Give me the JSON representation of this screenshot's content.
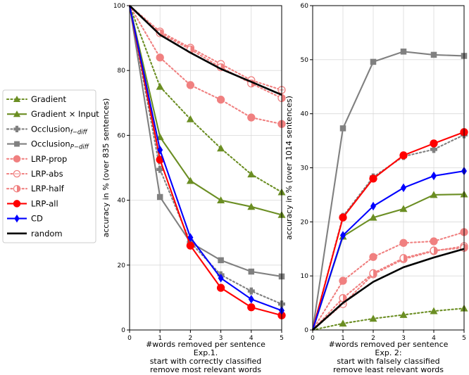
{
  "chart_data": [
    {
      "type": "line",
      "ylabel": "accuracy in % (over 835 sentences)",
      "xlabel": "#words removed per sentence",
      "caption": [
        "Exp.1.",
        "start with correctly classified",
        "remove most relevant words"
      ],
      "xlim": [
        0,
        5
      ],
      "ylim": [
        0,
        100
      ],
      "x": [
        0,
        1,
        2,
        3,
        4,
        5
      ],
      "xticks": [
        "0",
        "1",
        "2",
        "3",
        "4",
        "5"
      ],
      "yticks": [
        "0",
        "20",
        "40",
        "60",
        "80",
        "100"
      ],
      "grid": true,
      "series": [
        {
          "name": "Gradient",
          "values": [
            100,
            75,
            65,
            56,
            48,
            42.5
          ]
        },
        {
          "name": "Gradient × Input",
          "values": [
            100,
            59.5,
            46,
            40,
            38,
            35.5
          ]
        },
        {
          "name": "Occlusion_{f-diff}",
          "values": [
            100,
            49.5,
            27,
            17,
            12,
            8
          ]
        },
        {
          "name": "Occlusion_{P-diff}",
          "values": [
            100,
            41,
            27,
            21.5,
            18,
            16.5
          ]
        },
        {
          "name": "LRP-prop",
          "values": [
            100,
            84,
            75.5,
            71,
            65.5,
            63.5
          ]
        },
        {
          "name": "LRP-abs",
          "values": [
            100,
            92,
            87,
            82,
            77,
            74
          ]
        },
        {
          "name": "LRP-half",
          "values": [
            100,
            91.5,
            86.5,
            81,
            76,
            71.5
          ]
        },
        {
          "name": "LRP-all",
          "values": [
            100,
            52.5,
            26,
            13,
            7,
            4.5
          ]
        },
        {
          "name": "CD",
          "values": [
            100,
            55.5,
            28.5,
            16,
            9.5,
            6
          ]
        },
        {
          "name": "random",
          "values": [
            100,
            91,
            85.5,
            80.5,
            76.5,
            72.5
          ]
        }
      ]
    },
    {
      "type": "line",
      "ylabel": "accuracy in % (over 1014 sentences)",
      "xlabel": "#words removed per sentence",
      "caption": [
        "Exp. 2:",
        "start with falsely classified",
        "remove least relevant words"
      ],
      "xlim": [
        0,
        5
      ],
      "ylim": [
        0,
        60
      ],
      "x": [
        0,
        1,
        2,
        3,
        4,
        5
      ],
      "xticks": [
        "0",
        "1",
        "2",
        "3",
        "4",
        "5"
      ],
      "yticks": [
        "0",
        "10",
        "20",
        "30",
        "40",
        "50",
        "60"
      ],
      "grid": true,
      "series": [
        {
          "name": "Gradient",
          "values": [
            0,
            1.2,
            2.1,
            2.8,
            3.5,
            4.0
          ]
        },
        {
          "name": "Gradient × Input",
          "values": [
            0,
            17.3,
            20.8,
            22.4,
            25,
            25.1
          ]
        },
        {
          "name": "Occlusion_{f-diff}",
          "values": [
            0,
            21.0,
            28.3,
            32.1,
            33.4,
            36.1
          ]
        },
        {
          "name": "Occlusion_{P-diff}",
          "values": [
            0,
            37.3,
            49.6,
            51.5,
            50.9,
            50.7
          ]
        },
        {
          "name": "LRP-prop",
          "values": [
            0,
            9.1,
            13.5,
            16.1,
            16.4,
            18.1
          ]
        },
        {
          "name": "LRP-abs",
          "values": [
            0,
            4.8,
            10.3,
            13.1,
            14.6,
            15.5
          ]
        },
        {
          "name": "LRP-half",
          "values": [
            0,
            5.9,
            10.5,
            13.3,
            14.7,
            15.2
          ]
        },
        {
          "name": "LRP-all",
          "values": [
            0,
            20.8,
            28.0,
            32.3,
            34.5,
            36.6
          ]
        },
        {
          "name": "CD",
          "values": [
            0,
            17.5,
            22.9,
            26.3,
            28.5,
            29.4
          ]
        },
        {
          "name": "random",
          "values": [
            0,
            5.0,
            8.9,
            11.6,
            13.4,
            15.0
          ]
        }
      ]
    }
  ],
  "legend": {
    "placement": "left",
    "entries": [
      {
        "label": "Gradient"
      },
      {
        "label": "Gradient × Input"
      },
      {
        "label": "Occlusion",
        "sub": "f−diff"
      },
      {
        "label": "Occlusion",
        "sub": "P−diff"
      },
      {
        "label": "LRP-prop"
      },
      {
        "label": "LRP-abs"
      },
      {
        "label": "LRP-half"
      },
      {
        "label": "LRP-all"
      },
      {
        "label": "CD"
      },
      {
        "label": "random"
      }
    ]
  },
  "styles": [
    {
      "color": "#6b8e23",
      "dash": "dotted",
      "marker": "triangle",
      "fill": "solid"
    },
    {
      "color": "#6b8e23",
      "dash": "solid",
      "marker": "triangle",
      "fill": "solid"
    },
    {
      "color": "#808080",
      "dash": "dotted",
      "marker": "plus",
      "fill": "solid"
    },
    {
      "color": "#808080",
      "dash": "solid",
      "marker": "square",
      "fill": "solid"
    },
    {
      "color": "#f08080",
      "dash": "dotted",
      "marker": "circle",
      "fill": "solid"
    },
    {
      "color": "#f08080",
      "dash": "dotted",
      "marker": "circle",
      "fill": "open"
    },
    {
      "color": "#f08080",
      "dash": "dotted",
      "marker": "circle",
      "fill": "half"
    },
    {
      "color": "#ff0000",
      "dash": "solid",
      "marker": "circle",
      "fill": "solid"
    },
    {
      "color": "#0000ff",
      "dash": "solid",
      "marker": "diamond",
      "fill": "solid"
    },
    {
      "color": "#000000",
      "dash": "solid",
      "marker": "none",
      "fill": "none"
    }
  ]
}
